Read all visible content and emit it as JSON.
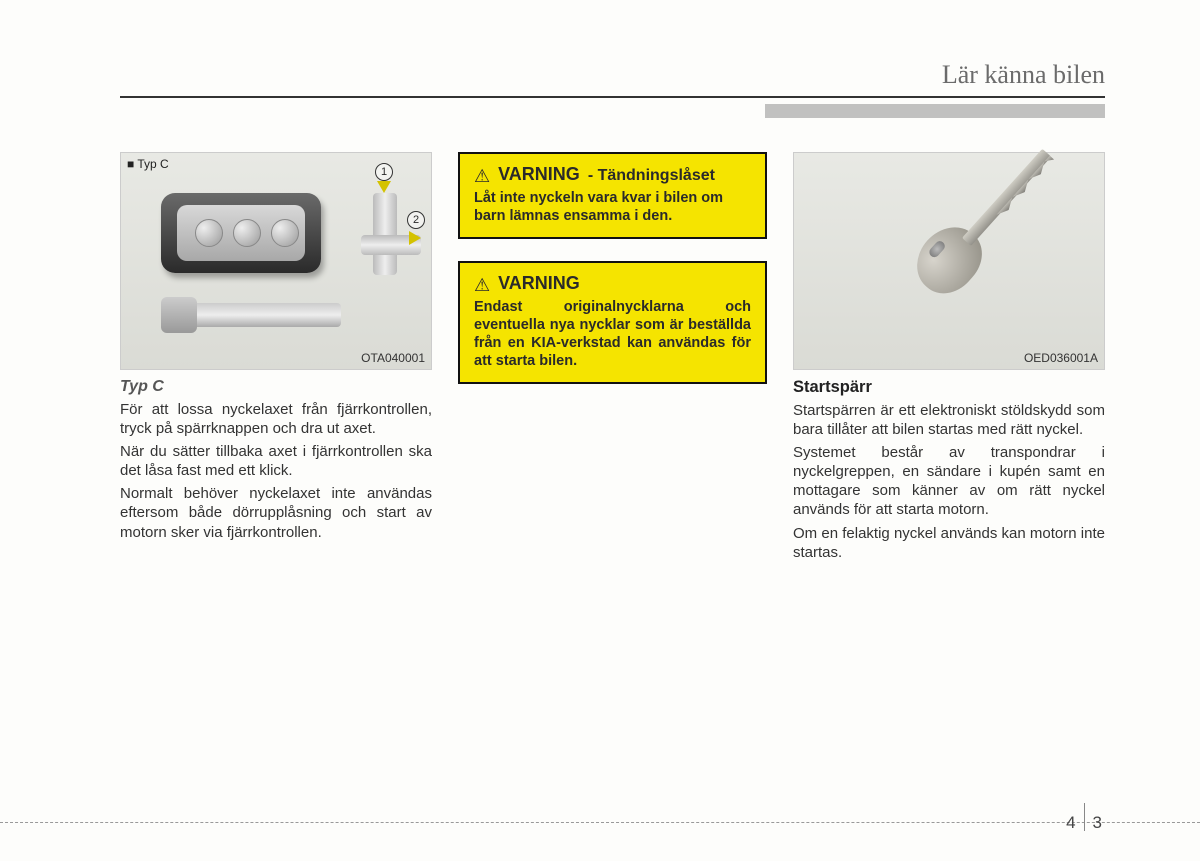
{
  "header": {
    "title": "Lär känna bilen"
  },
  "col1": {
    "fig_label": "■ Typ C",
    "fig_code": "OTA040001",
    "callout1": "1",
    "callout2": "2",
    "subtitle": "Typ C",
    "p1": "För att lossa nyckelaxet från fjärrkontrollen, tryck på spärrknappen och dra ut axet.",
    "p2": "När du sätter tillbaka axet i fjärrkontrollen ska det låsa fast med ett klick.",
    "p3": "Normalt behöver nyckelaxet inte användas eftersom både dörrupplåsning och start av motorn sker via fjärrkontrollen."
  },
  "col2": {
    "warn1": {
      "title": "VARNING",
      "subtitle": "- Tändningslåset",
      "body": "Låt inte nyckeln vara kvar i bilen om barn lämnas ensamma i den."
    },
    "warn2": {
      "title": "VARNING",
      "body": "Endast originalnycklarna och eventuella nya nycklar som är beställda från en KIA-verkstad kan användas för att starta bilen."
    }
  },
  "col3": {
    "fig_code": "OED036001A",
    "heading": "Startspärr",
    "p1": "Startspärren är ett elektroniskt stöldskydd som bara tillåter att bilen startas med rätt nyckel.",
    "p2": "Systemet består av transpondrar i nyckelgreppen, en sändare i kupén samt en mottagare som känner av om rätt nyckel används för att starta motorn.",
    "p3": "Om en felaktig nyckel används kan motorn inte startas."
  },
  "footer": {
    "page_left": "4",
    "page_right": "3"
  }
}
